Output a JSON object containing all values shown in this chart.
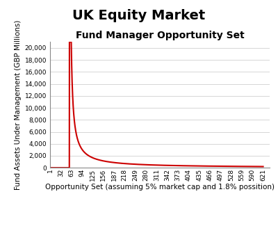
{
  "title": "UK Equity Market",
  "subtitle": "Fund Manager Opportunity Set",
  "xlabel": "Opportunity Set (assuming 5% market cap and 1.8% possition)",
  "ylabel": "Fund Assets Under Management (GBP Millions)",
  "line_color": "#cc0000",
  "background_color": "#ffffff",
  "ylim": [
    0,
    21000
  ],
  "yticks": [
    0,
    2000,
    4000,
    6000,
    8000,
    10000,
    12000,
    14000,
    16000,
    18000,
    20000
  ],
  "xtick_labels": [
    "1",
    "32",
    "63",
    "94",
    "125",
    "156",
    "187",
    "218",
    "249",
    "280",
    "311",
    "342",
    "373",
    "404",
    "435",
    "466",
    "497",
    "528",
    "559",
    "590",
    "621"
  ],
  "title_fontsize": 14,
  "subtitle_fontsize": 10,
  "axis_label_fontsize": 7.5,
  "tick_fontsize": 6.5,
  "figsize": [
    4.0,
    3.35
  ],
  "dpi": 100
}
